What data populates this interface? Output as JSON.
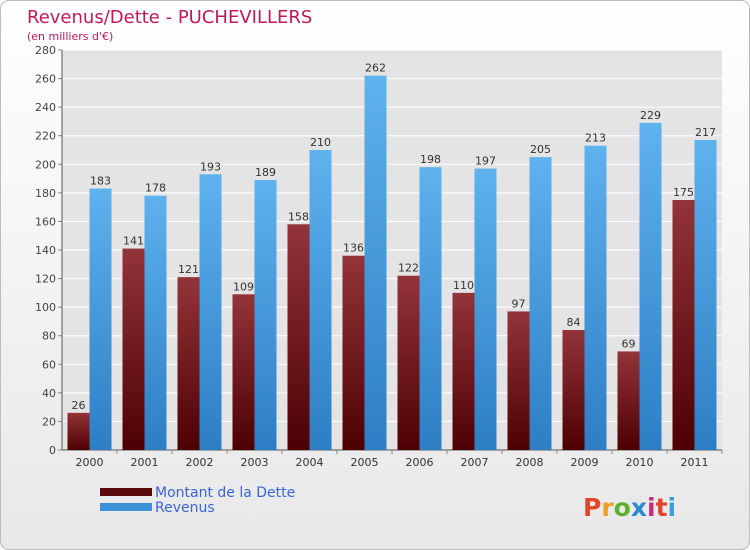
{
  "chart_data": {
    "type": "bar",
    "title": "Revenus/Dette - PUCHEVILLERS",
    "subtitle": "(en milliers d'€)",
    "categories": [
      "2000",
      "2001",
      "2002",
      "2003",
      "2004",
      "2005",
      "2006",
      "2007",
      "2008",
      "2009",
      "2010",
      "2011"
    ],
    "series": [
      {
        "name": "Montant de la Dette",
        "values": [
          26,
          141,
          121,
          109,
          158,
          136,
          122,
          110,
          97,
          84,
          69,
          175
        ],
        "color": "#7a1a1d"
      },
      {
        "name": "Revenus",
        "values": [
          183,
          178,
          193,
          189,
          210,
          262,
          198,
          197,
          205,
          213,
          229,
          217
        ],
        "color": "#4a9fe0"
      }
    ],
    "ylim": [
      0,
      280
    ],
    "yticks": [
      0,
      20,
      40,
      60,
      80,
      100,
      120,
      140,
      160,
      180,
      200,
      220,
      240,
      260,
      280
    ],
    "grid": true,
    "legend_position": "bottom-left"
  },
  "branding": {
    "logo_text": "Proxiti"
  },
  "colors": {
    "title": "#c0175d",
    "legend_text": "#3a64d8",
    "grid": "#ffffff",
    "plot_bg": "#e4e4e4"
  }
}
